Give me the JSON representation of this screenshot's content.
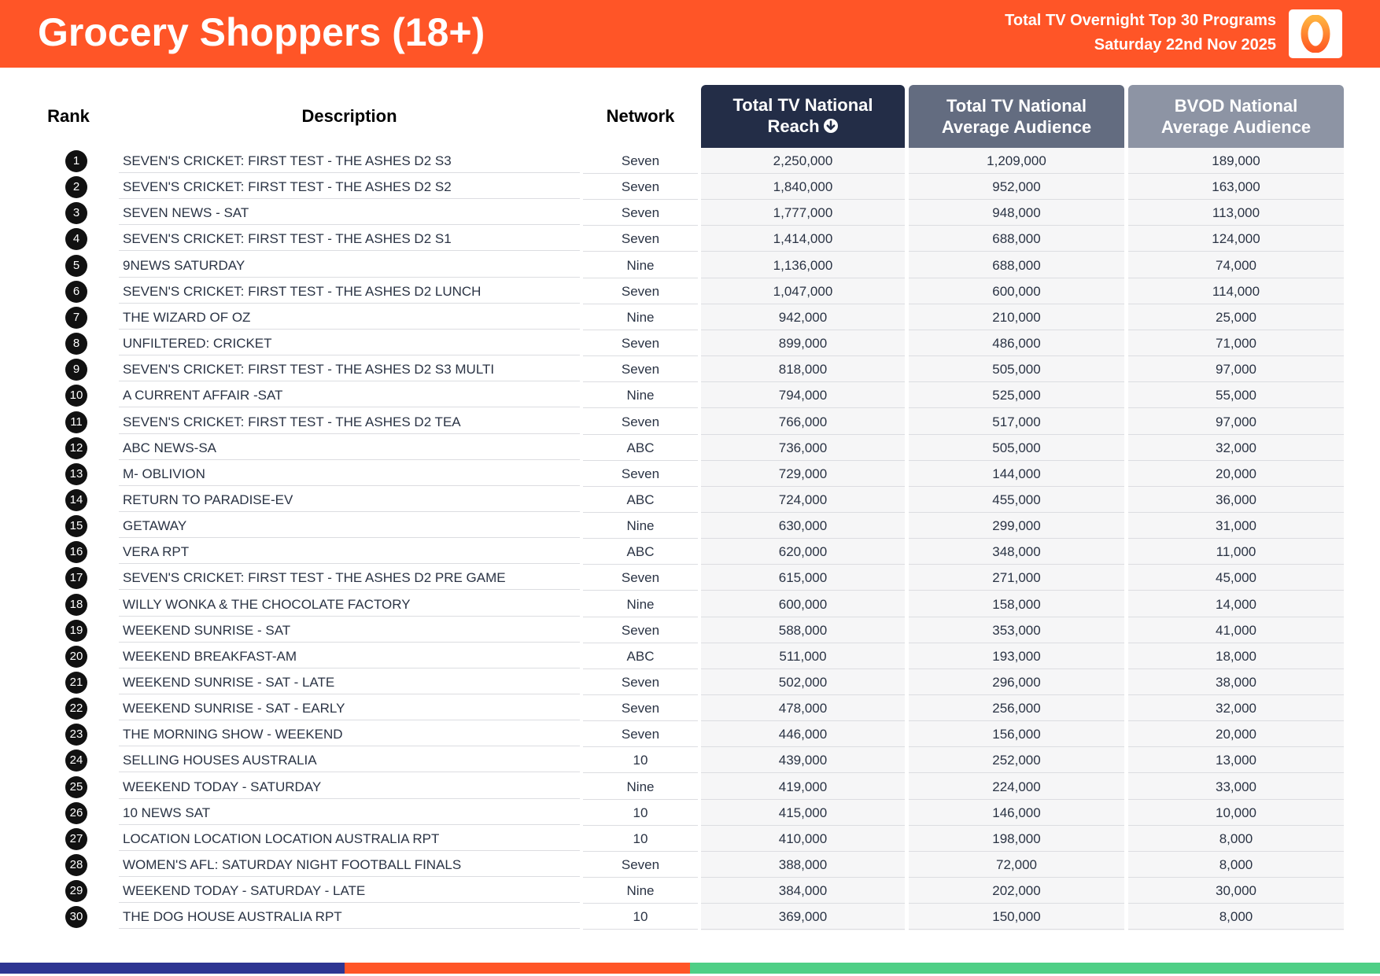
{
  "header": {
    "title": "Grocery Shoppers (18+)",
    "subtitle_line1": "Total TV Overnight Top 30 Programs",
    "subtitle_line2": "Saturday 22nd Nov 2025",
    "logo_icon": "oztam-zero-logo",
    "accent_color": "#ff5527"
  },
  "columns": {
    "rank": "Rank",
    "description": "Description",
    "network": "Network",
    "reach_line1": "Total TV National",
    "reach_line2": "Reach",
    "sort_icon": "sort-descending-icon",
    "tv_line1": "Total TV National",
    "tv_line2": "Average Audience",
    "bvod_line1": "BVOD National",
    "bvod_line2": "Average Audience"
  },
  "rows": [
    {
      "rank": "1",
      "description": "SEVEN'S CRICKET: FIRST TEST - THE ASHES D2 S3",
      "network": "Seven",
      "reach": "2,250,000",
      "tv_avg": "1,209,000",
      "bvod_avg": "189,000"
    },
    {
      "rank": "2",
      "description": "SEVEN'S CRICKET: FIRST TEST - THE ASHES D2 S2",
      "network": "Seven",
      "reach": "1,840,000",
      "tv_avg": "952,000",
      "bvod_avg": "163,000"
    },
    {
      "rank": "3",
      "description": "SEVEN NEWS - SAT",
      "network": "Seven",
      "reach": "1,777,000",
      "tv_avg": "948,000",
      "bvod_avg": "113,000"
    },
    {
      "rank": "4",
      "description": "SEVEN'S CRICKET: FIRST TEST - THE ASHES D2 S1",
      "network": "Seven",
      "reach": "1,414,000",
      "tv_avg": "688,000",
      "bvod_avg": "124,000"
    },
    {
      "rank": "5",
      "description": "9NEWS SATURDAY",
      "network": "Nine",
      "reach": "1,136,000",
      "tv_avg": "688,000",
      "bvod_avg": "74,000"
    },
    {
      "rank": "6",
      "description": "SEVEN'S CRICKET: FIRST TEST - THE ASHES D2 LUNCH",
      "network": "Seven",
      "reach": "1,047,000",
      "tv_avg": "600,000",
      "bvod_avg": "114,000"
    },
    {
      "rank": "7",
      "description": "THE WIZARD OF OZ",
      "network": "Nine",
      "reach": "942,000",
      "tv_avg": "210,000",
      "bvod_avg": "25,000"
    },
    {
      "rank": "8",
      "description": "UNFILTERED: CRICKET",
      "network": "Seven",
      "reach": "899,000",
      "tv_avg": "486,000",
      "bvod_avg": "71,000"
    },
    {
      "rank": "9",
      "description": "SEVEN'S CRICKET: FIRST TEST - THE ASHES D2 S3 MULTI",
      "network": "Seven",
      "reach": "818,000",
      "tv_avg": "505,000",
      "bvod_avg": "97,000"
    },
    {
      "rank": "10",
      "description": "A CURRENT AFFAIR -SAT",
      "network": "Nine",
      "reach": "794,000",
      "tv_avg": "525,000",
      "bvod_avg": "55,000"
    },
    {
      "rank": "11",
      "description": "SEVEN'S CRICKET: FIRST TEST - THE ASHES D2 TEA",
      "network": "Seven",
      "reach": "766,000",
      "tv_avg": "517,000",
      "bvod_avg": "97,000"
    },
    {
      "rank": "12",
      "description": "ABC NEWS-SA",
      "network": "ABC",
      "reach": "736,000",
      "tv_avg": "505,000",
      "bvod_avg": "32,000"
    },
    {
      "rank": "13",
      "description": "M- OBLIVION",
      "network": "Seven",
      "reach": "729,000",
      "tv_avg": "144,000",
      "bvod_avg": "20,000"
    },
    {
      "rank": "14",
      "description": "RETURN TO PARADISE-EV",
      "network": "ABC",
      "reach": "724,000",
      "tv_avg": "455,000",
      "bvod_avg": "36,000"
    },
    {
      "rank": "15",
      "description": "GETAWAY",
      "network": "Nine",
      "reach": "630,000",
      "tv_avg": "299,000",
      "bvod_avg": "31,000"
    },
    {
      "rank": "16",
      "description": "VERA RPT",
      "network": "ABC",
      "reach": "620,000",
      "tv_avg": "348,000",
      "bvod_avg": "11,000"
    },
    {
      "rank": "17",
      "description": "SEVEN'S CRICKET: FIRST TEST - THE ASHES D2 PRE GAME",
      "network": "Seven",
      "reach": "615,000",
      "tv_avg": "271,000",
      "bvod_avg": "45,000"
    },
    {
      "rank": "18",
      "description": "WILLY WONKA & THE CHOCOLATE FACTORY",
      "network": "Nine",
      "reach": "600,000",
      "tv_avg": "158,000",
      "bvod_avg": "14,000"
    },
    {
      "rank": "19",
      "description": "WEEKEND SUNRISE - SAT",
      "network": "Seven",
      "reach": "588,000",
      "tv_avg": "353,000",
      "bvod_avg": "41,000"
    },
    {
      "rank": "20",
      "description": "WEEKEND BREAKFAST-AM",
      "network": "ABC",
      "reach": "511,000",
      "tv_avg": "193,000",
      "bvod_avg": "18,000"
    },
    {
      "rank": "21",
      "description": "WEEKEND SUNRISE - SAT - LATE",
      "network": "Seven",
      "reach": "502,000",
      "tv_avg": "296,000",
      "bvod_avg": "38,000"
    },
    {
      "rank": "22",
      "description": "WEEKEND SUNRISE - SAT - EARLY",
      "network": "Seven",
      "reach": "478,000",
      "tv_avg": "256,000",
      "bvod_avg": "32,000"
    },
    {
      "rank": "23",
      "description": "THE MORNING SHOW - WEEKEND",
      "network": "Seven",
      "reach": "446,000",
      "tv_avg": "156,000",
      "bvod_avg": "20,000"
    },
    {
      "rank": "24",
      "description": "SELLING HOUSES AUSTRALIA",
      "network": "10",
      "reach": "439,000",
      "tv_avg": "252,000",
      "bvod_avg": "13,000"
    },
    {
      "rank": "25",
      "description": "WEEKEND TODAY - SATURDAY",
      "network": "Nine",
      "reach": "419,000",
      "tv_avg": "224,000",
      "bvod_avg": "33,000"
    },
    {
      "rank": "26",
      "description": "10 NEWS SAT",
      "network": "10",
      "reach": "415,000",
      "tv_avg": "146,000",
      "bvod_avg": "10,000"
    },
    {
      "rank": "27",
      "description": "LOCATION LOCATION LOCATION AUSTRALIA RPT",
      "network": "10",
      "reach": "410,000",
      "tv_avg": "198,000",
      "bvod_avg": "8,000"
    },
    {
      "rank": "28",
      "description": "WOMEN'S AFL: SATURDAY NIGHT FOOTBALL FINALS",
      "network": "Seven",
      "reach": "388,000",
      "tv_avg": "72,000",
      "bvod_avg": "8,000"
    },
    {
      "rank": "29",
      "description": "WEEKEND TODAY - SATURDAY - LATE",
      "network": "Nine",
      "reach": "384,000",
      "tv_avg": "202,000",
      "bvod_avg": "30,000"
    },
    {
      "rank": "30",
      "description": "THE DOG HOUSE AUSTRALIA RPT",
      "network": "10",
      "reach": "369,000",
      "tv_avg": "150,000",
      "bvod_avg": "8,000"
    }
  ],
  "footer_colors": [
    "#2e3592",
    "#ff5527",
    "#4fcf86"
  ]
}
